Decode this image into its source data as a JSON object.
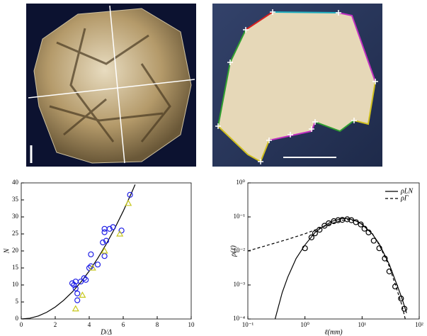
{
  "chart_data": [
    {
      "type": "scatter",
      "xlabel": "D/Δ",
      "ylabel": "N",
      "xlim": [
        0,
        10
      ],
      "ylim": [
        0,
        40
      ],
      "xticks": [
        0,
        2,
        4,
        6,
        8,
        10
      ],
      "yticks": [
        0,
        5,
        10,
        15,
        20,
        25,
        30,
        35,
        40
      ],
      "series": [
        {
          "style": "line",
          "color": "#000000",
          "x": [
            0,
            0.5,
            1,
            1.5,
            2,
            2.5,
            3,
            3.5,
            4,
            4.5,
            5,
            5.5,
            6,
            6.5,
            6.7
          ],
          "values": [
            0,
            0.22,
            0.88,
            1.98,
            3.52,
            5.5,
            7.92,
            10.78,
            14.08,
            17.82,
            22,
            26.62,
            31.68,
            37.18,
            39.5
          ]
        },
        {
          "style": "marker",
          "marker": "circle",
          "color": "#1f1fe6",
          "x": [
            3.0,
            3.1,
            3.2,
            3.2,
            3.3,
            3.3,
            3.5,
            3.7,
            3.8,
            4.0,
            4.1,
            4.1,
            4.5,
            4.8,
            4.9,
            4.9,
            4.9,
            5.0,
            5.2,
            5.4,
            5.9,
            6.4
          ],
          "values": [
            10.5,
            10,
            11,
            9,
            5.5,
            7.5,
            11,
            12,
            11.5,
            15,
            19,
            15.5,
            16,
            22.5,
            18.5,
            25.5,
            26.5,
            23,
            26.5,
            27,
            26,
            36.5
          ]
        },
        {
          "style": "marker",
          "marker": "triangle",
          "color": "#c8c81e",
          "x": [
            3.2,
            3.6,
            4.2,
            4.9,
            5.8,
            6.3
          ],
          "values": [
            3,
            7,
            15,
            20,
            25,
            34
          ]
        }
      ]
    },
    {
      "type": "scatter",
      "xlabel": "ℓ(mm)",
      "ylabel": "ρ(ℓ)",
      "xscale": "log",
      "yscale": "log",
      "legend": "upper right",
      "xlim": [
        0.1,
        100
      ],
      "ylim": [
        0.0001,
        1
      ],
      "xticks": [
        {
          "value": 0.1,
          "label": "10⁻¹"
        },
        {
          "value": 1,
          "label": "10⁰"
        },
        {
          "value": 10,
          "label": "10¹"
        },
        {
          "value": 100,
          "label": "10²"
        }
      ],
      "yticks": [
        {
          "value": 0.0001,
          "label": "10⁻⁴"
        },
        {
          "value": 0.001,
          "label": "10⁻³"
        },
        {
          "value": 0.01,
          "label": "10⁻²"
        },
        {
          "value": 0.1,
          "label": "10⁻¹"
        },
        {
          "value": 1,
          "label": "10⁰"
        }
      ],
      "series": [
        {
          "name": "ρLN",
          "style": "line",
          "color": "#000000",
          "x": [
            0.3,
            0.4,
            0.5,
            0.7,
            1,
            1.5,
            2,
            3,
            4.5,
            6,
            8,
            10,
            15,
            20,
            30,
            40,
            50,
            60
          ],
          "values": [
            0.0001,
            0.0006,
            0.0017,
            0.006,
            0.015,
            0.035,
            0.05,
            0.075,
            0.09,
            0.088,
            0.075,
            0.06,
            0.032,
            0.016,
            0.004,
            0.0011,
            0.0004,
            0.00015
          ]
        },
        {
          "name": "ρΓ",
          "style": "line",
          "linestyle": "dashed",
          "color": "#000000",
          "x": [
            0.1,
            0.2,
            0.5,
            1,
            2,
            3,
            4.5,
            6,
            8,
            10,
            15,
            20,
            30,
            40,
            50,
            57
          ],
          "values": [
            0.01,
            0.014,
            0.022,
            0.032,
            0.05,
            0.065,
            0.08,
            0.083,
            0.075,
            0.062,
            0.033,
            0.015,
            0.0035,
            0.0008,
            0.00025,
            0.0001
          ]
        },
        {
          "style": "marker",
          "marker": "circle",
          "color": "#000000",
          "x": [
            1.0,
            1.3,
            1.5,
            1.8,
            2.2,
            2.6,
            3.2,
            3.8,
            4.5,
            5.5,
            6.5,
            7.8,
            9.5,
            11,
            13,
            16,
            20,
            25,
            30,
            38,
            48,
            55
          ],
          "values": [
            0.012,
            0.025,
            0.033,
            0.042,
            0.055,
            0.065,
            0.075,
            0.08,
            0.082,
            0.085,
            0.08,
            0.07,
            0.06,
            0.045,
            0.035,
            0.02,
            0.012,
            0.006,
            0.0025,
            0.0009,
            0.0004,
            0.0002
          ]
        }
      ]
    }
  ]
}
